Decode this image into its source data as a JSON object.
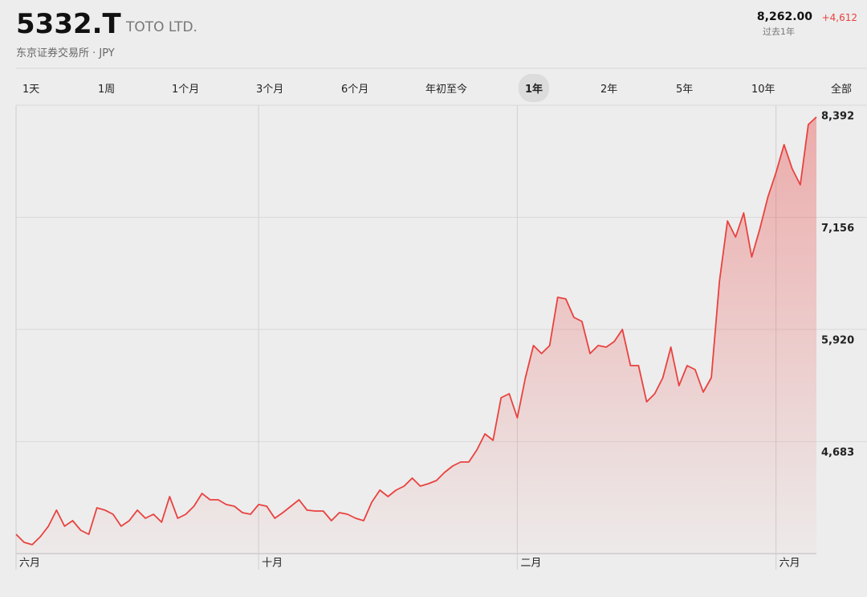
{
  "header": {
    "symbol": "5332.T",
    "company": "TOTO LTD.",
    "exchange": "东京证券交易所 · JPY",
    "price": "8,262.00",
    "period": "过去1年",
    "change": "+4,612"
  },
  "tabs": {
    "items": [
      "1天",
      "1周",
      "1个月",
      "3个月",
      "6个月",
      "年初至今",
      "1年",
      "2年",
      "5年",
      "10年",
      "全部"
    ],
    "selected": 6
  },
  "chart_data": {
    "type": "line",
    "color": "#e8423f",
    "categories": [
      "六月",
      null,
      null,
      null,
      null,
      null,
      null,
      null,
      null,
      null,
      null,
      null,
      null,
      null,
      null,
      null,
      null,
      null,
      null,
      null,
      null,
      null,
      null,
      null,
      null,
      null,
      null,
      null,
      null,
      null,
      "十月",
      null,
      null,
      null,
      null,
      null,
      null,
      null,
      null,
      null,
      null,
      null,
      null,
      null,
      null,
      null,
      null,
      null,
      null,
      null,
      null,
      null,
      null,
      null,
      null,
      null,
      null,
      null,
      null,
      null,
      null,
      null,
      "二月",
      null,
      null,
      null,
      null,
      null,
      null,
      null,
      null,
      null,
      null,
      null,
      null,
      null,
      null,
      null,
      null,
      null,
      null,
      null,
      null,
      null,
      null,
      null,
      null,
      null,
      null,
      null,
      null,
      null,
      null,
      null,
      "六月",
      null,
      null,
      null,
      null,
      null
    ],
    "values": [
      3661,
      3572,
      3546,
      3634,
      3750,
      3927,
      3750,
      3811,
      3705,
      3661,
      3953,
      3927,
      3882,
      3750,
      3811,
      3927,
      3838,
      3882,
      3794,
      4077,
      3838,
      3882,
      3971,
      4112,
      4042,
      4042,
      3989,
      3971,
      3900,
      3882,
      3989,
      3971,
      3838,
      3900,
      3971,
      4042,
      3927,
      3918,
      3918,
      3811,
      3900,
      3882,
      3838,
      3811,
      4015,
      4148,
      4077,
      4148,
      4192,
      4281,
      4192,
      4219,
      4254,
      4343,
      4414,
      4458,
      4458,
      4591,
      4768,
      4697,
      5167,
      5211,
      4945,
      5388,
      5743,
      5654,
      5743,
      6274,
      6257,
      6053,
      6009,
      5654,
      5743,
      5725,
      5787,
      5920,
      5521,
      5521,
      5122,
      5211,
      5388,
      5725,
      5300,
      5521,
      5477,
      5229,
      5388,
      6452,
      7116,
      6939,
      7205,
      6718,
      7028,
      7382,
      7648,
      7958,
      7692,
      7515,
      8179,
      8262
    ],
    "ylim": [
      3448,
      8392
    ],
    "yticks": [
      {
        "value": 4683,
        "label": "4,683"
      },
      {
        "value": 5920,
        "label": "5,920"
      },
      {
        "value": 7156,
        "label": "7,156"
      },
      {
        "value": 8392,
        "label": "8,392"
      }
    ],
    "grid": true
  }
}
